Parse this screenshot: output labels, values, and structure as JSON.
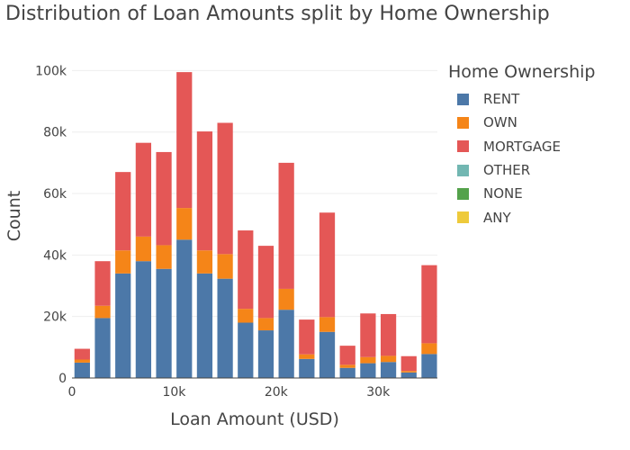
{
  "chart_data": {
    "type": "bar",
    "stacked": true,
    "title": "Distribution of Loan Amounts split by Home Ownership",
    "xlabel": "Loan Amount (USD)",
    "ylabel": "Count",
    "x_tick_labels": [
      "0",
      "10k",
      "20k",
      "30k"
    ],
    "x_ticks": [
      0,
      10000,
      20000,
      30000
    ],
    "y_tick_labels": [
      "0",
      "20k",
      "40k",
      "60k",
      "80k",
      "100k"
    ],
    "y_ticks": [
      0,
      20000,
      40000,
      60000,
      80000,
      100000
    ],
    "xlim": [
      0,
      35800
    ],
    "ylim": [
      0,
      101000
    ],
    "bin_width": 2000,
    "x": [
      1000,
      3000,
      5000,
      7000,
      9000,
      11000,
      13000,
      15000,
      17000,
      19000,
      21000,
      23000,
      25000,
      27000,
      29000,
      31000,
      33000,
      35000
    ],
    "legend_title": "Home Ownership",
    "legend_position": "right",
    "series": [
      {
        "name": "RENT",
        "color": "#4c78a8",
        "values": [
          5000,
          19500,
          34000,
          38000,
          35500,
          45000,
          34000,
          32300,
          18000,
          15500,
          22200,
          6200,
          15000,
          3300,
          4800,
          5200,
          1800,
          7800
        ]
      },
      {
        "name": "OWN",
        "color": "#f58518",
        "values": [
          1000,
          4000,
          7500,
          8000,
          7700,
          10300,
          7500,
          8000,
          4500,
          4000,
          6800,
          1500,
          4800,
          1000,
          2000,
          2000,
          500,
          3500
        ]
      },
      {
        "name": "MORTGAGE",
        "color": "#e45756",
        "values": [
          3500,
          14500,
          25500,
          30500,
          30300,
          44200,
          38700,
          42700,
          25500,
          23500,
          41000,
          11300,
          34000,
          6200,
          14200,
          13600,
          4800,
          25400
        ]
      },
      {
        "name": "OTHER",
        "color": "#72b7b2",
        "values": [
          0,
          0,
          0,
          0,
          0,
          0,
          0,
          0,
          0,
          0,
          0,
          0,
          0,
          0,
          0,
          0,
          0,
          0
        ]
      },
      {
        "name": "NONE",
        "color": "#54a24b",
        "values": [
          0,
          0,
          0,
          0,
          0,
          0,
          0,
          0,
          0,
          0,
          0,
          0,
          0,
          0,
          0,
          0,
          0,
          0
        ]
      },
      {
        "name": "ANY",
        "color": "#eeca3b",
        "values": [
          0,
          0,
          0,
          0,
          0,
          0,
          0,
          0,
          0,
          0,
          0,
          0,
          0,
          0,
          0,
          0,
          0,
          0
        ]
      }
    ]
  }
}
